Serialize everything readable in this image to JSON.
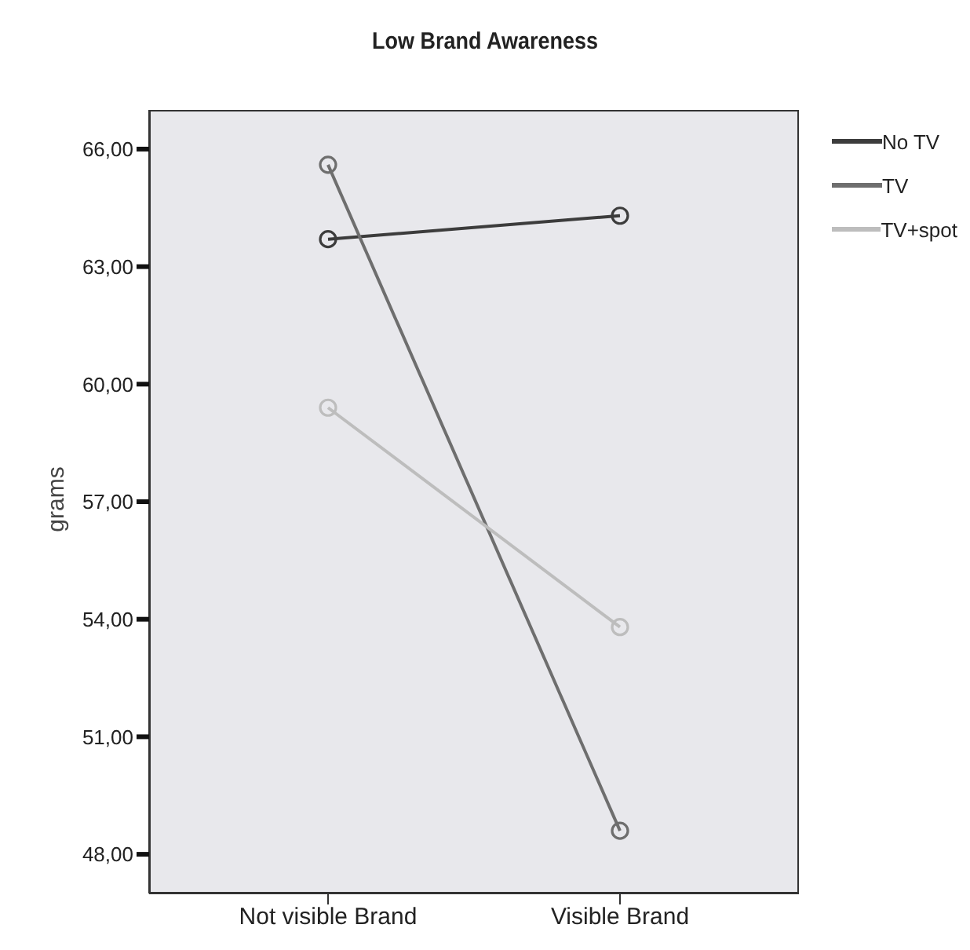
{
  "chart_data": {
    "type": "line",
    "title": "Low Brand Awareness",
    "ylabel": "grams",
    "categories": [
      "Not visible Brand",
      "Visible Brand"
    ],
    "series": [
      {
        "name": "No TV",
        "color": "#3c3c3c",
        "values": [
          63.7,
          64.3
        ]
      },
      {
        "name": "TV",
        "color": "#6e6e6e",
        "values": [
          65.6,
          48.6
        ]
      },
      {
        "name": "TV+spot",
        "color": "#bdbdbd",
        "values": [
          59.4,
          53.8
        ]
      }
    ],
    "ylim": [
      47,
      67
    ],
    "yticks": [
      {
        "value": 48,
        "label": "48,00"
      },
      {
        "value": 51,
        "label": "51,00"
      },
      {
        "value": 54,
        "label": "54,00"
      },
      {
        "value": 57,
        "label": "57,00"
      },
      {
        "value": 60,
        "label": "60,00"
      },
      {
        "value": 63,
        "label": "63,00"
      },
      {
        "value": 66,
        "label": "66,00"
      }
    ],
    "grid": false,
    "legend": "top right",
    "marker": "circle",
    "line_style": "solid"
  }
}
